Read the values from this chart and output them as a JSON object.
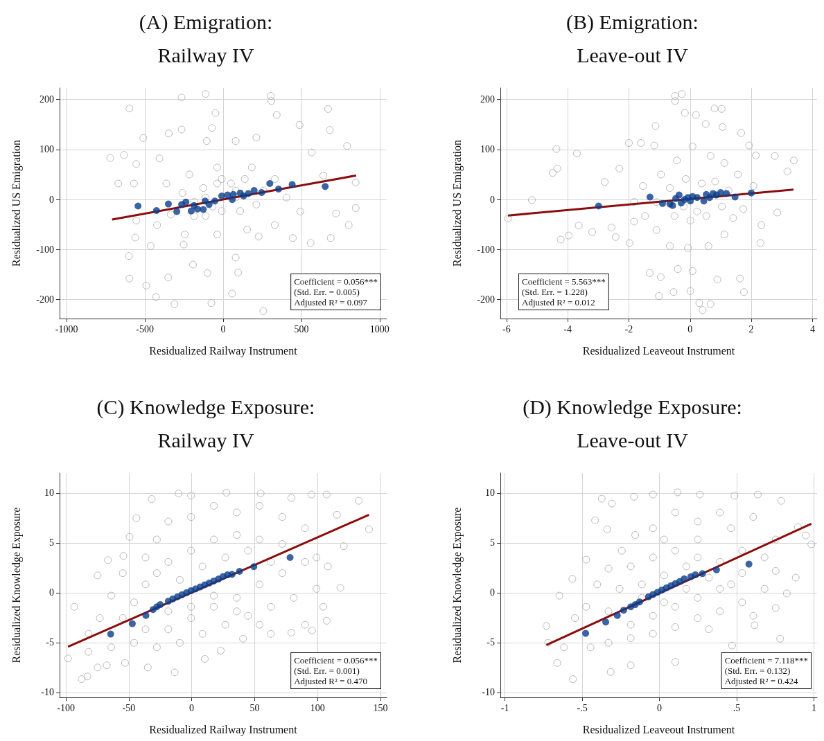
{
  "chart_data": [
    {
      "type": "scatter",
      "title": "(A) Emigration:\nRailway IV",
      "xlabel": "Residualized Railway Instrument",
      "ylabel": "Residualized US Emigration",
      "annotations": [
        "Coefficient = 0.056***\n(Std. Err. = 0.005)\nAdjusted R² = 0.097"
      ],
      "xlim": [
        -1045,
        1045
      ],
      "ylim": [
        -238,
        223
      ],
      "xticks": [
        -1000,
        -500,
        0,
        500,
        1000
      ],
      "yticks": [
        -200,
        -100,
        0,
        100,
        200
      ],
      "grid": true,
      "marker": "circle",
      "series": [
        {
          "color": "#a8a8a8",
          "x": [
            -599,
            -266,
            -112,
            305,
            308,
            670,
            -49,
            342,
            681,
            -266,
            -348,
            -71,
            488,
            -510,
            -721,
            -634,
            792,
            -670,
            847,
            847,
            802,
            687,
            559,
            445,
            -562,
            -602,
            -599,
            -491,
            -429,
            -311,
            -75,
            57,
            257,
            96,
            -100,
            -351,
            -193,
            -463,
            -252,
            80,
            227,
            721,
            640,
            566,
            212,
            80,
            -105,
            -407,
            -555,
            -570,
            -555,
            -422,
            -334,
            -245,
            -38,
            153,
            330,
            493,
            404,
            330,
            183,
            -38,
            -216,
            -363,
            -260,
            -186,
            -112,
            -9,
            109,
            212,
            -38,
            50,
            138,
            -127,
            -68,
            80,
            257,
            -9,
            80,
            -112,
            -186
          ],
          "values": [
            182,
            204,
            211,
            207,
            197,
            181,
            173,
            169,
            139,
            140,
            132,
            143,
            149,
            123,
            83,
            89,
            107,
            32,
            34,
            -17,
            -51,
            -77,
            -87,
            -77,
            -76,
            -113,
            -158,
            -172,
            -195,
            -209,
            -207,
            -188,
            -223,
            -146,
            -147,
            -156,
            -130,
            -93,
            -90,
            -116,
            -74,
            -28,
            48,
            94,
            124,
            117,
            117,
            82,
            71,
            32,
            -42,
            -51,
            -30,
            -70,
            -70,
            -60,
            -51,
            -24,
            4,
            41,
            64,
            64,
            50,
            32,
            13,
            -5,
            -33,
            -23,
            -23,
            -10,
            32,
            32,
            41,
            23,
            -14,
            4,
            18,
            41,
            18,
            4,
            -33
          ]
        },
        {
          "color": "#0a3d8c",
          "x": [
            -544,
            -426,
            -350,
            -296,
            -265,
            -238,
            -204,
            -186,
            -164,
            -127,
            -115,
            -90,
            -53,
            -9,
            28,
            58,
            65,
            109,
            131,
            161,
            198,
            246,
            298,
            354,
            441,
            652
          ],
          "values": [
            -13,
            -22,
            -9,
            -24,
            -10,
            -5,
            -23,
            -12,
            -19,
            -20,
            -3,
            -10,
            -3,
            7,
            9,
            0,
            10,
            13,
            7,
            12,
            18,
            14,
            32,
            21,
            30,
            26
          ]
        },
        {
          "type": "line",
          "marker": "none",
          "color": "#8b0d0d",
          "x": [
            -710,
            850
          ],
          "values": [
            -40,
            48
          ]
        }
      ]
    },
    {
      "type": "scatter",
      "title": "(B) Emigration:\nLeave-out IV",
      "xlabel": "Residualized Leaveout Instrument",
      "ylabel": "Residualized US Emigration",
      "annotations": [
        "Coefficient = 5.563***\n(Std. Err. = 1.228)\nAdjusted R² = 0.012"
      ],
      "xlim": [
        -6.2,
        4.15
      ],
      "ylim": [
        -238,
        223
      ],
      "xticks": [
        -6,
        -4,
        -2,
        0,
        2,
        4
      ],
      "yticks": [
        -200,
        -100,
        0,
        100,
        200
      ],
      "grid": true,
      "marker": "circle",
      "series": [
        {
          "color": "#a8a8a8",
          "x": [
            -0.49,
            -0.27,
            -0.49,
            0.8,
            1.03,
            -0.17,
            0.19,
            -1.13,
            1.06,
            0.51,
            -4.37,
            -3.7,
            -4.49,
            -4.34,
            -5.17,
            -5.95,
            -4.23,
            -3.97,
            -3.64,
            -3.2,
            -2.79,
            -2.31,
            -2.0,
            -1.61,
            -1.17,
            1.67,
            1.93,
            2.15,
            2.77,
            3.39,
            3.18,
            2.85,
            2.33,
            2.3,
            1.76,
            1.63,
            0.89,
            0.67,
            0.41,
            0.3,
            0.01,
            -0.54,
            -1.02,
            -0.96,
            -1.32,
            -0.4,
            0.08,
            -2.43,
            -1.98,
            -2.57,
            -1.83,
            -1.47,
            -1.1,
            -0.66,
            -0.07,
            0.6,
            1.12,
            1.41,
            1.74,
            2.07,
            1.56,
            1.12,
            0.67,
            0.08,
            -0.43,
            -0.95,
            -1.54,
            -1.83,
            -0.66,
            -0.14,
            0.38,
            0.82,
            1.26,
            -0.51,
            0.01,
            0.53,
            1.04,
            -1.1,
            -0.21,
            0.23
          ],
          "values": [
            207,
            211,
            197,
            182,
            181,
            173,
            169,
            147,
            145,
            151,
            101,
            92,
            53,
            62,
            -1,
            -38,
            -80,
            -72,
            -52,
            -65,
            35,
            62,
            113,
            113,
            108,
            133,
            108,
            88,
            87,
            78,
            56,
            -26,
            -51,
            -87,
            -185,
            -158,
            -160,
            -209,
            -221,
            -207,
            -183,
            -185,
            -193,
            -155,
            -147,
            -139,
            -143,
            -75,
            -87,
            -56,
            -44,
            -33,
            -61,
            -93,
            -97,
            -93,
            -70,
            -37,
            -19,
            27,
            50,
            73,
            87,
            106,
            78,
            50,
            27,
            -5,
            23,
            41,
            32,
            36,
            18,
            -33,
            -42,
            -33,
            -14,
            -5,
            -14,
            -24
          ]
        },
        {
          "color": "#0a3d8c",
          "x": [
            -2.99,
            -1.31,
            -0.9,
            -0.66,
            -0.57,
            -0.47,
            -0.36,
            -0.29,
            -0.18,
            -0.07,
            0.01,
            0.08,
            0.23,
            0.45,
            0.53,
            0.64,
            0.75,
            0.86,
            1.0,
            1.19,
            1.47,
            2.0
          ],
          "values": [
            -13,
            5,
            -8,
            -9,
            -12,
            2,
            9,
            -7,
            0,
            4,
            -3,
            6,
            4,
            -3,
            10,
            4,
            12,
            9,
            14,
            12,
            5,
            13
          ]
        },
        {
          "type": "line",
          "marker": "none",
          "color": "#8b0d0d",
          "x": [
            -5.95,
            3.38
          ],
          "values": [
            -32,
            20
          ]
        }
      ]
    },
    {
      "type": "scatter",
      "title": "(C) Knowledge Exposure:\nRailway IV",
      "xlabel": "Residualized Railway Instrument",
      "ylabel": "Residualized Knowledge Exposure",
      "annotations": [
        "Coefficient = 0.056***\n(Std. Err. = 0.001)\nAdjusted R² = 0.470"
      ],
      "xlim": [
        -105,
        155
      ],
      "ylim": [
        -10.5,
        12
      ],
      "xticks": [
        -100,
        -50,
        0,
        50,
        100,
        150
      ],
      "yticks": [
        -10,
        -5,
        0,
        5,
        10
      ],
      "grid": true,
      "marker": "circle",
      "series": [
        {
          "color": "#a8a8a8",
          "x": [
            -93.3,
            -98.3,
            -87.5,
            -82.9,
            -74.8,
            -66.6,
            -74.8,
            -54.3,
            -49.4,
            -44.0,
            -31.8,
            -10.4,
            -0.5,
            27.6,
            54.8,
            79.2,
            95.2,
            107.3,
            115.5,
            132.7,
            140.9,
            120.9,
            118.2,
            107.3,
            95.6,
            79.2,
            62.9,
            40.8,
            23.1,
            10.4,
            -13.5,
            -34.9,
            -53.0,
            -67.5,
            -82.0,
            -63.9,
            -45.8,
            -27.7,
            -9.5,
            8.6,
            26.7,
            44.8,
            63.0,
            81.1,
            99.2,
            108.2,
            99.2,
            90.1,
            72.0,
            53.9,
            35.8,
            17.6,
            -0.5,
            -18.6,
            -27.7,
            -36.7,
            -54.8,
            -63.9,
            -73.0,
            -82.0,
            -54.8,
            -36.7,
            -18.6,
            -0.5,
            17.6,
            35.8,
            53.9,
            72.0,
            90.1,
            72.0,
            53.9,
            35.8,
            17.6,
            -0.5,
            -18.6,
            -36.7,
            -45.8,
            -27.7,
            -9.5,
            8.6,
            26.7,
            44.8,
            63.0,
            17.6,
            35.8,
            53.9,
            -0.5,
            -18.6,
            90.1,
            104.6
          ],
          "values": [
            -1.42,
            -6.6,
            -8.67,
            -8.4,
            -7.5,
            3.26,
            1.73,
            3.69,
            5.6,
            7.47,
            9.39,
            9.95,
            9.73,
            10.02,
            9.95,
            9.5,
            9.84,
            9.84,
            7.81,
            9.21,
            6.35,
            4.66,
            0.49,
            -2.82,
            -3.79,
            -4.01,
            -4.13,
            -4.62,
            -5.81,
            -6.65,
            -8.0,
            -7.5,
            -7.05,
            -7.28,
            -5.93,
            -5.48,
            -5.03,
            -5.48,
            -5.03,
            -4.13,
            -3.22,
            -2.32,
            -1.42,
            -0.52,
            0.38,
            2.63,
            3.53,
            6.46,
            7.59,
            8.71,
            8.04,
            8.71,
            7.59,
            7.14,
            5.33,
            3.53,
            1.96,
            -0.3,
            -2.55,
            -4.12,
            -2.55,
            -3.67,
            -3.67,
            -2.55,
            -1.42,
            -0.52,
            0.83,
            1.96,
            3.08,
            4.88,
            5.33,
            5.78,
            5.33,
            4.21,
            3.08,
            0.83,
            -0.97,
            1.96,
            1.28,
            2.63,
            3.53,
            4.21,
            3.08,
            -0.3,
            -1.87,
            -3.22,
            -1.42,
            -1.87,
            -3.22,
            -1.42
          ]
        },
        {
          "color": "#0a3d8c",
          "x": [
            -64.4,
            -47.2,
            -36.4,
            -30.7,
            -27.7,
            -25.0,
            -18.6,
            -15.0,
            -11.3,
            -7.7,
            -4.1,
            -0.5,
            3.1,
            6.8,
            10.4,
            14.0,
            17.6,
            21.3,
            24.9,
            28.5,
            32.1,
            38.0,
            49.4,
            78.2
          ],
          "values": [
            -4.15,
            -3.11,
            -2.28,
            -1.69,
            -1.42,
            -1.2,
            -0.86,
            -0.63,
            -0.41,
            -0.21,
            0.0,
            0.2,
            0.38,
            0.58,
            0.79,
            0.97,
            1.17,
            1.37,
            1.62,
            1.8,
            1.84,
            2.14,
            2.61,
            3.53
          ]
        },
        {
          "type": "line",
          "marker": "none",
          "color": "#8b0d0d",
          "x": [
            -98.3,
            140.9
          ],
          "values": [
            -5.43,
            7.81
          ]
        }
      ]
    },
    {
      "type": "scatter",
      "title": "(D) Knowledge Exposure:\nLeave-out IV",
      "xlabel": "Residualized Leaveout Instrument",
      "ylabel": "Residualized Knowledge Exposure",
      "annotations": [
        "Coefficient = 7.118***\n(Std. Err. = 0.132)\nAdjusted R² = 0.424"
      ],
      "xlim": [
        -1.03,
        1.02
      ],
      "ylim": [
        -10.5,
        12
      ],
      "xticks": [
        -1,
        {
          "value": -0.5,
          "label": "-.5"
        },
        0,
        {
          "value": 0.5,
          "label": ".5"
        },
        1
      ],
      "yticks": [
        -10,
        -5,
        0,
        5,
        10
      ],
      "grid": true,
      "marker": "circle",
      "series": [
        {
          "color": "#a8a8a8",
          "x": [
            -0.732,
            -0.72,
            -0.662,
            -0.561,
            -0.316,
            -0.186,
            0.102,
            0.47,
            0.781,
            0.615,
            0.752,
            0.824,
            0.882,
            0.983,
            0.947,
            0.896,
            0.788,
            0.636,
            0.485,
            0.261,
            0.117,
            -0.042,
            -0.165,
            -0.374,
            -0.309,
            -0.417,
            -0.338,
            -0.475,
            -0.564,
            -0.648,
            -0.547,
            -0.619,
            -0.446,
            -0.33,
            -0.186,
            -0.042,
            0.102,
            0.247,
            0.391,
            0.535,
            0.68,
            0.752,
            0.68,
            0.752,
            0.607,
            0.463,
            0.391,
            0.247,
            0.102,
            -0.042,
            -0.157,
            -0.244,
            -0.33,
            -0.403,
            -0.475,
            -0.33,
            -0.186,
            -0.042,
            0.102,
            0.247,
            0.391,
            0.535,
            0.391,
            0.247,
            0.102,
            -0.042,
            -0.186,
            -0.258,
            -0.114,
            0.03,
            0.174,
            0.319,
            0.463,
            0.535,
            0.247,
            0.03,
            -0.114,
            0.03,
            0.174,
            0.319,
            0.607
          ],
          "values": [
            -3.34,
            -5.02,
            -7.05,
            -8.67,
            -7.95,
            -7.28,
            -6.94,
            -5.3,
            -4.62,
            -3.27,
            -1.53,
            -0.07,
            1.51,
            4.84,
            5.74,
            6.57,
            9.21,
            9.84,
            9.73,
            9.84,
            10.06,
            9.84,
            9.61,
            9.43,
            8.94,
            7.25,
            6.35,
            3.31,
            1.39,
            -0.3,
            -2.55,
            -5.48,
            -5.48,
            -5.03,
            -4.57,
            -4.12,
            -3.45,
            -2.55,
            -1.87,
            -0.97,
            0.38,
            2.18,
            3.53,
            5.33,
            7.59,
            6.46,
            8.04,
            7.14,
            8.04,
            6.46,
            5.78,
            4.21,
            2.41,
            0.83,
            -1.42,
            -1.87,
            -3.22,
            -2.32,
            -1.42,
            -0.52,
            0.38,
            1.96,
            3.08,
            3.53,
            4.21,
            3.53,
            2.63,
            0.38,
            0.83,
            1.73,
            2.63,
            1.51,
            0.83,
            4.21,
            5.33,
            5.33,
            -0.52,
            -0.97,
            0.38,
            -3.67,
            -2.32
          ]
        },
        {
          "color": "#0a3d8c",
          "x": [
            -0.478,
            -0.348,
            -0.273,
            -0.232,
            -0.186,
            -0.157,
            -0.129,
            -0.071,
            -0.042,
            -0.013,
            0.016,
            0.045,
            0.074,
            0.102,
            0.131,
            0.16,
            0.203,
            0.232,
            0.278,
            0.369,
            0.579
          ],
          "values": [
            -4.08,
            -2.95,
            -2.28,
            -1.76,
            -1.42,
            -1.2,
            -0.93,
            -0.41,
            -0.18,
            0.04,
            0.27,
            0.49,
            0.7,
            0.9,
            1.12,
            1.39,
            1.6,
            1.8,
            1.91,
            2.29,
            2.86
          ]
        },
        {
          "type": "line",
          "marker": "none",
          "color": "#8b0d0d",
          "x": [
            -0.732,
            0.983
          ],
          "values": [
            -5.25,
            6.91
          ]
        }
      ]
    }
  ]
}
